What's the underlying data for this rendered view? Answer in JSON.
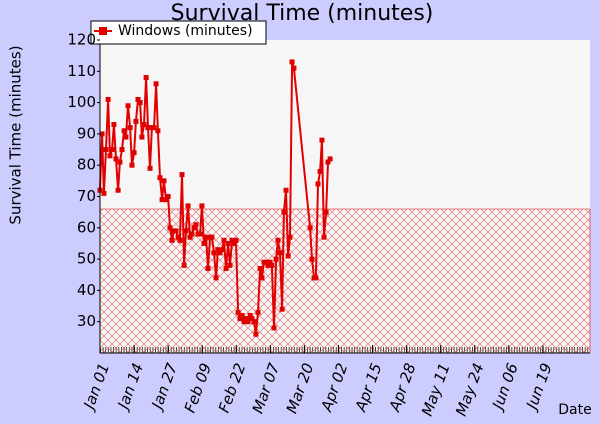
{
  "chart_data": {
    "type": "line",
    "title": "Survival Time (minutes)",
    "y_label": "Survival Time (minutes)",
    "x_label": "Date",
    "x": [
      0,
      0.8,
      1.5,
      2.3,
      3.1,
      3.8,
      4.6,
      5.3,
      6.1,
      6.9,
      7.6,
      8.4,
      9.2,
      9.9,
      10.7,
      11.5,
      12.2,
      13.0,
      13.7,
      14.5,
      15.3,
      16.0,
      16.8,
      17.6,
      18.3,
      19.1,
      19.8,
      20.6,
      21.4,
      22.1,
      22.9,
      23.7,
      24.4,
      25.2,
      26.0,
      26.7,
      27.5,
      28.2,
      29.0,
      29.8,
      30.5,
      31.3,
      32.1,
      32.8,
      33.6,
      34.4,
      35.1,
      35.9,
      36.6,
      37.4,
      38.2,
      38.9,
      39.7,
      40.5,
      41.2,
      42.0,
      42.7,
      43.5,
      44.3,
      45.0,
      45.8,
      46.6,
      47.3,
      48.1,
      48.9,
      49.6,
      50.4,
      51.1,
      51.9,
      52.7,
      53.4,
      54.2,
      55.0,
      55.7,
      56.5,
      57.3,
      58.0,
      58.8,
      59.5,
      60.3,
      61.1,
      61.8,
      62.6,
      63.4,
      64.1,
      64.9,
      65.6,
      66.4,
      67.2,
      67.9,
      68.7,
      69.5,
      70.2,
      71.0,
      71.8,
      72.5,
      73.3,
      74.0,
      80.2,
      80.9,
      81.7,
      82.4,
      83.2,
      84.0,
      84.7,
      85.5,
      86.3,
      87.0,
      87.8
    ],
    "series": [
      {
        "name": "Windows (minutes)",
        "color": "#e00000",
        "values": [
          72,
          90,
          71,
          85,
          101,
          83,
          85,
          93,
          82,
          72,
          81,
          85,
          91,
          89,
          99,
          92,
          80,
          84,
          94,
          101,
          100,
          89,
          93,
          108,
          92,
          79,
          92,
          92,
          106,
          91,
          76,
          69,
          75,
          69,
          70,
          60,
          56,
          59,
          59,
          57,
          56,
          77,
          48,
          59,
          67,
          57,
          58,
          60,
          61,
          58,
          58,
          67,
          55,
          57,
          47,
          57,
          57,
          52,
          44,
          53,
          52,
          53,
          56,
          47,
          55,
          48,
          56,
          55,
          56,
          33,
          31,
          32,
          30,
          31,
          30,
          32,
          31,
          30,
          26,
          33,
          47,
          44,
          49,
          49,
          48,
          49,
          48,
          28,
          50,
          56,
          52,
          34,
          65,
          72,
          51,
          57,
          113,
          111,
          60,
          50,
          44,
          44,
          74,
          78,
          88,
          57,
          65,
          81,
          82
        ]
      }
    ],
    "reference_level": 66,
    "reference_color": "#e02020",
    "xlim": [
      0,
      187
    ],
    "xticks": [
      {
        "value": 0,
        "label": "Jan 01"
      },
      {
        "value": 13,
        "label": "Jan 14"
      },
      {
        "value": 26,
        "label": "Jan 27"
      },
      {
        "value": 39,
        "label": "Feb 09"
      },
      {
        "value": 52,
        "label": "Feb 22"
      },
      {
        "value": 65,
        "label": "Mar 07"
      },
      {
        "value": 78,
        "label": "Mar 20"
      },
      {
        "value": 91,
        "label": "Apr 02"
      },
      {
        "value": 104,
        "label": "Apr 15"
      },
      {
        "value": 117,
        "label": "Apr 28"
      },
      {
        "value": 130,
        "label": "May 11"
      },
      {
        "value": 143,
        "label": "May 24"
      },
      {
        "value": 156,
        "label": "Jun 06"
      },
      {
        "value": 169,
        "label": "Jun 19"
      }
    ],
    "ylim": [
      20,
      120
    ],
    "yticks": [
      30,
      40,
      50,
      60,
      70,
      80,
      90,
      100,
      110,
      120
    ],
    "legend": "top-left"
  }
}
